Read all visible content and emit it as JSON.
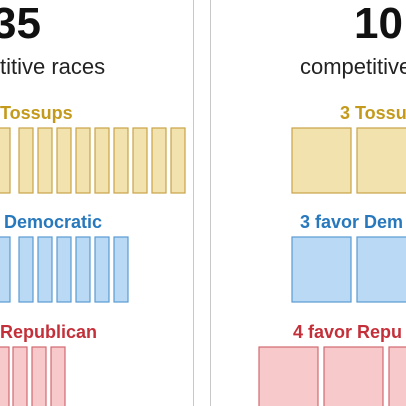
{
  "left_panel": {
    "count": "35",
    "caption": "titive races",
    "groups": [
      {
        "label": "Tossups"
      },
      {
        "label": "Democratic"
      },
      {
        "label": "Republican"
      }
    ]
  },
  "right_panel": {
    "count": "10",
    "caption": "competitive",
    "groups": [
      {
        "label": "3 Tossu"
      },
      {
        "label": "3 favor Dem"
      },
      {
        "label": "4 favor Repu"
      }
    ]
  }
}
